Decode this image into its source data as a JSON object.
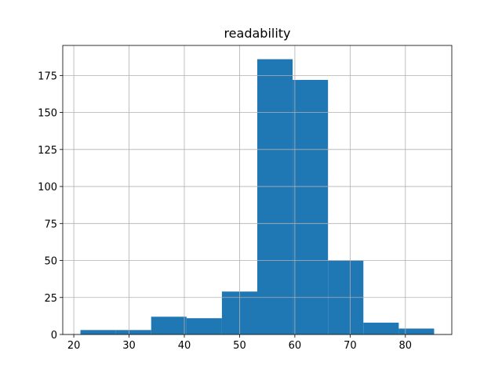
{
  "chart_data": {
    "type": "histogram",
    "title": "readability",
    "bins": [
      21.2,
      27.6,
      34.0,
      40.4,
      46.8,
      53.2,
      59.6,
      66.0,
      72.4,
      78.8,
      85.2
    ],
    "values": [
      3,
      3,
      12,
      11,
      29,
      186,
      172,
      50,
      8,
      4
    ],
    "color": "#1f77b4",
    "xlim": [
      18,
      88.4
    ],
    "xticks": [
      20,
      30,
      40,
      50,
      60,
      70,
      80
    ],
    "ylim": [
      0,
      195.3
    ],
    "yticks": [
      0,
      25,
      50,
      75,
      100,
      125,
      150,
      175
    ],
    "grid": true
  }
}
